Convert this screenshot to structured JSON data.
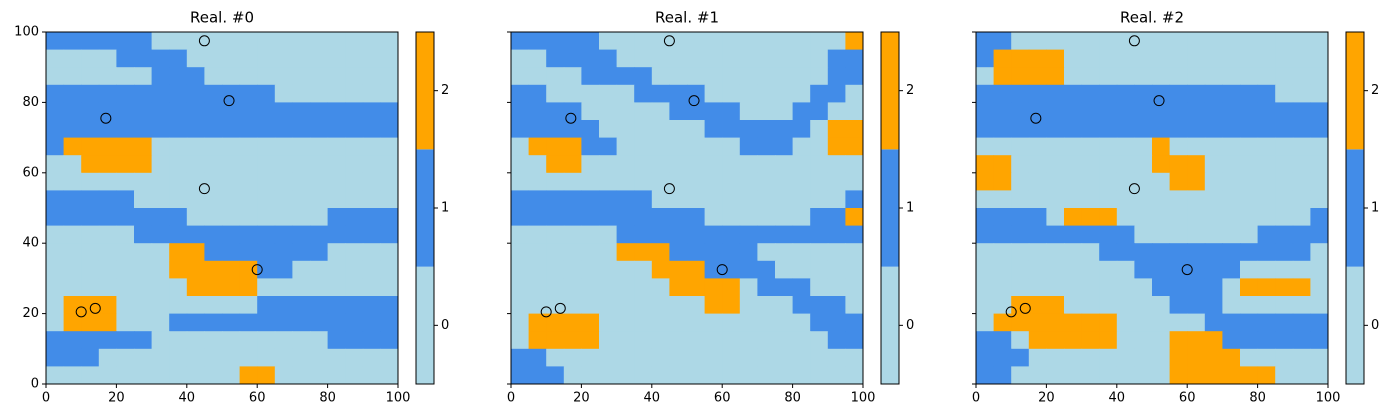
{
  "chart_data": [
    {
      "type": "heatmap",
      "title": "Real. #0",
      "xlim": [
        0,
        100
      ],
      "ylim": [
        0,
        100
      ],
      "xticks": [
        0,
        20,
        40,
        60,
        80,
        100
      ],
      "yticks": [
        0,
        20,
        40,
        60,
        80,
        100
      ],
      "show_ytick_labels": true,
      "z": [
        [
          1,
          1,
          1,
          1,
          1,
          1,
          0,
          0,
          0,
          0,
          0,
          0,
          0,
          0,
          0,
          0,
          0,
          0,
          0,
          0
        ],
        [
          0,
          0,
          0,
          0,
          1,
          1,
          1,
          1,
          0,
          0,
          0,
          0,
          0,
          0,
          0,
          0,
          0,
          0,
          0,
          0
        ],
        [
          0,
          0,
          0,
          0,
          0,
          0,
          1,
          1,
          1,
          0,
          0,
          0,
          0,
          0,
          0,
          0,
          0,
          0,
          0,
          0
        ],
        [
          1,
          1,
          1,
          1,
          1,
          1,
          1,
          1,
          1,
          1,
          1,
          1,
          1,
          0,
          0,
          0,
          0,
          0,
          0,
          0
        ],
        [
          1,
          1,
          1,
          1,
          1,
          1,
          1,
          1,
          1,
          1,
          1,
          1,
          1,
          1,
          1,
          1,
          1,
          1,
          1,
          1
        ],
        [
          1,
          1,
          1,
          1,
          1,
          1,
          1,
          1,
          1,
          1,
          1,
          1,
          1,
          1,
          1,
          1,
          1,
          1,
          1,
          1
        ],
        [
          1,
          2,
          2,
          2,
          2,
          2,
          0,
          0,
          0,
          0,
          0,
          0,
          0,
          0,
          0,
          0,
          0,
          0,
          0,
          0
        ],
        [
          0,
          0,
          2,
          2,
          2,
          2,
          0,
          0,
          0,
          0,
          0,
          0,
          0,
          0,
          0,
          0,
          0,
          0,
          0,
          0
        ],
        [
          0,
          0,
          0,
          0,
          0,
          0,
          0,
          0,
          0,
          0,
          0,
          0,
          0,
          0,
          0,
          0,
          0,
          0,
          0,
          0
        ],
        [
          1,
          1,
          1,
          1,
          1,
          0,
          0,
          0,
          0,
          0,
          0,
          0,
          0,
          0,
          0,
          0,
          0,
          0,
          0,
          0
        ],
        [
          1,
          1,
          1,
          1,
          1,
          1,
          1,
          1,
          0,
          0,
          0,
          0,
          0,
          0,
          0,
          0,
          1,
          1,
          1,
          1
        ],
        [
          0,
          0,
          0,
          0,
          0,
          1,
          1,
          1,
          1,
          1,
          1,
          1,
          1,
          1,
          1,
          1,
          1,
          1,
          1,
          1
        ],
        [
          0,
          0,
          0,
          0,
          0,
          0,
          0,
          2,
          2,
          1,
          1,
          1,
          1,
          1,
          1,
          1,
          0,
          0,
          0,
          0
        ],
        [
          0,
          0,
          0,
          0,
          0,
          0,
          0,
          2,
          2,
          2,
          2,
          2,
          1,
          1,
          0,
          0,
          0,
          0,
          0,
          0
        ],
        [
          0,
          0,
          0,
          0,
          0,
          0,
          0,
          0,
          2,
          2,
          2,
          2,
          0,
          0,
          0,
          0,
          0,
          0,
          0,
          0
        ],
        [
          0,
          2,
          2,
          2,
          0,
          0,
          0,
          0,
          0,
          0,
          0,
          0,
          1,
          1,
          1,
          1,
          1,
          1,
          1,
          1
        ],
        [
          0,
          2,
          2,
          2,
          0,
          0,
          0,
          1,
          1,
          1,
          1,
          1,
          1,
          1,
          1,
          1,
          1,
          1,
          1,
          1
        ],
        [
          1,
          1,
          1,
          1,
          1,
          1,
          0,
          0,
          0,
          0,
          0,
          0,
          0,
          0,
          0,
          0,
          1,
          1,
          1,
          1
        ],
        [
          1,
          1,
          1,
          0,
          0,
          0,
          0,
          0,
          0,
          0,
          0,
          0,
          0,
          0,
          0,
          0,
          0,
          0,
          0,
          0
        ],
        [
          0,
          0,
          0,
          0,
          0,
          0,
          0,
          0,
          0,
          0,
          0,
          2,
          2,
          0,
          0,
          0,
          0,
          0,
          0,
          0
        ]
      ],
      "colors": [
        "#add8e6",
        "#428ce8",
        "#ffa500"
      ],
      "points": {
        "x": [
          45,
          52,
          17,
          45,
          60,
          10,
          14
        ],
        "y": [
          97.5,
          80.5,
          75.5,
          55.5,
          32.5,
          20.5,
          21.5
        ]
      },
      "colorbar": {
        "lim": [
          -0.5,
          2.5
        ],
        "ticks": [
          0,
          1,
          2
        ],
        "levels": [
          0,
          1,
          2
        ]
      }
    },
    {
      "type": "heatmap",
      "title": "Real. #1",
      "xlim": [
        0,
        100
      ],
      "ylim": [
        0,
        100
      ],
      "xticks": [
        0,
        20,
        40,
        60,
        80,
        100
      ],
      "yticks": [
        0,
        20,
        40,
        60,
        80,
        100
      ],
      "show_ytick_labels": false,
      "z": [
        [
          1,
          1,
          1,
          1,
          1,
          0,
          0,
          0,
          0,
          0,
          0,
          0,
          0,
          0,
          0,
          0,
          0,
          0,
          0,
          2
        ],
        [
          0,
          0,
          1,
          1,
          1,
          1,
          0,
          0,
          0,
          0,
          0,
          0,
          0,
          0,
          0,
          0,
          0,
          0,
          1,
          1
        ],
        [
          0,
          0,
          0,
          0,
          1,
          1,
          1,
          1,
          0,
          0,
          0,
          0,
          0,
          0,
          0,
          0,
          0,
          0,
          1,
          1
        ],
        [
          1,
          1,
          0,
          0,
          0,
          0,
          0,
          1,
          1,
          1,
          1,
          0,
          0,
          0,
          0,
          0,
          0,
          1,
          1,
          0
        ],
        [
          1,
          1,
          1,
          1,
          0,
          0,
          0,
          0,
          0,
          1,
          1,
          1,
          1,
          0,
          0,
          0,
          1,
          1,
          0,
          0
        ],
        [
          1,
          1,
          1,
          1,
          1,
          0,
          0,
          0,
          0,
          0,
          0,
          1,
          1,
          1,
          1,
          1,
          1,
          0,
          2,
          2
        ],
        [
          0,
          2,
          2,
          2,
          1,
          1,
          0,
          0,
          0,
          0,
          0,
          0,
          0,
          1,
          1,
          1,
          0,
          0,
          2,
          2
        ],
        [
          0,
          0,
          2,
          2,
          0,
          0,
          0,
          0,
          0,
          0,
          0,
          0,
          0,
          0,
          0,
          0,
          0,
          0,
          0,
          0
        ],
        [
          0,
          0,
          0,
          0,
          0,
          0,
          0,
          0,
          0,
          0,
          0,
          0,
          0,
          0,
          0,
          0,
          0,
          0,
          0,
          0
        ],
        [
          1,
          1,
          1,
          1,
          1,
          1,
          1,
          1,
          0,
          0,
          0,
          0,
          0,
          0,
          0,
          0,
          0,
          0,
          0,
          1
        ],
        [
          1,
          1,
          1,
          1,
          1,
          1,
          1,
          1,
          1,
          1,
          1,
          0,
          0,
          0,
          0,
          0,
          0,
          1,
          1,
          2
        ],
        [
          0,
          0,
          0,
          0,
          0,
          0,
          1,
          1,
          1,
          1,
          1,
          1,
          1,
          1,
          1,
          1,
          1,
          1,
          1,
          1
        ],
        [
          0,
          0,
          0,
          0,
          0,
          0,
          2,
          2,
          2,
          1,
          1,
          1,
          1,
          1,
          0,
          0,
          0,
          0,
          0,
          0
        ],
        [
          0,
          0,
          0,
          0,
          0,
          0,
          0,
          0,
          2,
          2,
          2,
          1,
          1,
          1,
          1,
          0,
          0,
          0,
          0,
          0
        ],
        [
          0,
          0,
          0,
          0,
          0,
          0,
          0,
          0,
          0,
          2,
          2,
          2,
          2,
          0,
          1,
          1,
          1,
          0,
          0,
          0
        ],
        [
          0,
          0,
          0,
          0,
          0,
          0,
          0,
          0,
          0,
          0,
          0,
          2,
          2,
          0,
          0,
          0,
          1,
          1,
          1,
          0
        ],
        [
          0,
          2,
          2,
          2,
          2,
          0,
          0,
          0,
          0,
          0,
          0,
          0,
          0,
          0,
          0,
          0,
          0,
          1,
          1,
          1
        ],
        [
          0,
          2,
          2,
          2,
          2,
          0,
          0,
          0,
          0,
          0,
          0,
          0,
          0,
          0,
          0,
          0,
          0,
          0,
          1,
          1
        ],
        [
          1,
          1,
          0,
          0,
          0,
          0,
          0,
          0,
          0,
          0,
          0,
          0,
          0,
          0,
          0,
          0,
          0,
          0,
          0,
          0
        ],
        [
          1,
          1,
          1,
          0,
          0,
          0,
          0,
          0,
          0,
          0,
          0,
          0,
          0,
          0,
          0,
          0,
          0,
          0,
          0,
          0
        ]
      ],
      "colors": [
        "#add8e6",
        "#428ce8",
        "#ffa500"
      ],
      "points": {
        "x": [
          45,
          52,
          17,
          45,
          60,
          10,
          14
        ],
        "y": [
          97.5,
          80.5,
          75.5,
          55.5,
          32.5,
          20.5,
          21.5
        ]
      },
      "colorbar": {
        "lim": [
          -0.5,
          2.5
        ],
        "ticks": [
          0,
          1,
          2
        ],
        "levels": [
          0,
          1,
          2
        ]
      }
    },
    {
      "type": "heatmap",
      "title": "Real. #2",
      "xlim": [
        0,
        100
      ],
      "ylim": [
        0,
        100
      ],
      "xticks": [
        0,
        20,
        40,
        60,
        80,
        100
      ],
      "yticks": [
        0,
        20,
        40,
        60,
        80,
        100
      ],
      "show_ytick_labels": false,
      "z": [
        [
          1,
          1,
          0,
          0,
          0,
          0,
          0,
          0,
          0,
          0,
          0,
          0,
          0,
          0,
          0,
          0,
          0,
          0,
          0,
          0
        ],
        [
          1,
          2,
          2,
          2,
          2,
          0,
          0,
          0,
          0,
          0,
          0,
          0,
          0,
          0,
          0,
          0,
          0,
          0,
          0,
          0
        ],
        [
          0,
          2,
          2,
          2,
          2,
          0,
          0,
          0,
          0,
          0,
          0,
          0,
          0,
          0,
          0,
          0,
          0,
          0,
          0,
          0
        ],
        [
          1,
          1,
          1,
          1,
          1,
          1,
          1,
          1,
          1,
          1,
          1,
          1,
          1,
          1,
          1,
          1,
          1,
          0,
          0,
          0
        ],
        [
          1,
          1,
          1,
          1,
          1,
          1,
          1,
          1,
          1,
          1,
          1,
          1,
          1,
          1,
          1,
          1,
          1,
          1,
          1,
          1
        ],
        [
          1,
          1,
          1,
          1,
          1,
          1,
          1,
          1,
          1,
          1,
          1,
          1,
          1,
          1,
          1,
          1,
          1,
          1,
          1,
          1
        ],
        [
          0,
          0,
          0,
          0,
          0,
          0,
          0,
          0,
          0,
          0,
          2,
          0,
          0,
          0,
          0,
          0,
          0,
          0,
          0,
          0
        ],
        [
          2,
          2,
          0,
          0,
          0,
          0,
          0,
          0,
          0,
          0,
          2,
          2,
          2,
          0,
          0,
          0,
          0,
          0,
          0,
          0
        ],
        [
          2,
          2,
          0,
          0,
          0,
          0,
          0,
          0,
          0,
          0,
          0,
          2,
          2,
          0,
          0,
          0,
          0,
          0,
          0,
          0
        ],
        [
          0,
          0,
          0,
          0,
          0,
          0,
          0,
          0,
          0,
          0,
          0,
          0,
          0,
          0,
          0,
          0,
          0,
          0,
          0,
          0
        ],
        [
          1,
          1,
          1,
          1,
          0,
          2,
          2,
          2,
          0,
          0,
          0,
          0,
          0,
          0,
          0,
          0,
          0,
          0,
          0,
          1
        ],
        [
          1,
          1,
          1,
          1,
          1,
          1,
          1,
          1,
          1,
          0,
          0,
          0,
          0,
          0,
          0,
          0,
          1,
          1,
          1,
          1
        ],
        [
          0,
          0,
          0,
          0,
          0,
          0,
          0,
          1,
          1,
          1,
          1,
          1,
          1,
          1,
          1,
          1,
          1,
          1,
          1,
          0
        ],
        [
          0,
          0,
          0,
          0,
          0,
          0,
          0,
          0,
          0,
          1,
          1,
          1,
          1,
          1,
          1,
          0,
          0,
          0,
          0,
          0
        ],
        [
          0,
          0,
          0,
          0,
          0,
          0,
          0,
          0,
          0,
          0,
          1,
          1,
          1,
          1,
          0,
          2,
          2,
          2,
          2,
          0
        ],
        [
          0,
          0,
          2,
          2,
          2,
          0,
          0,
          0,
          0,
          0,
          0,
          1,
          1,
          1,
          0,
          0,
          0,
          0,
          0,
          0
        ],
        [
          0,
          2,
          2,
          2,
          2,
          2,
          2,
          2,
          0,
          0,
          0,
          0,
          0,
          1,
          1,
          1,
          1,
          1,
          1,
          1
        ],
        [
          1,
          1,
          0,
          2,
          2,
          2,
          2,
          2,
          0,
          0,
          0,
          2,
          2,
          2,
          1,
          1,
          1,
          1,
          1,
          1
        ],
        [
          1,
          1,
          1,
          0,
          0,
          0,
          0,
          0,
          0,
          0,
          0,
          2,
          2,
          2,
          2,
          0,
          0,
          0,
          0,
          0
        ],
        [
          1,
          1,
          0,
          0,
          0,
          0,
          0,
          0,
          0,
          0,
          0,
          2,
          2,
          2,
          2,
          2,
          2,
          0,
          0,
          0
        ]
      ],
      "colors": [
        "#add8e6",
        "#428ce8",
        "#ffa500"
      ],
      "points": {
        "x": [
          45,
          52,
          17,
          45,
          60,
          10,
          14
        ],
        "y": [
          97.5,
          80.5,
          75.5,
          55.5,
          32.5,
          20.5,
          21.5
        ]
      },
      "colorbar": {
        "lim": [
          -0.5,
          2.5
        ],
        "ticks": [
          0,
          1,
          2
        ],
        "levels": [
          0,
          1,
          2
        ]
      }
    }
  ]
}
